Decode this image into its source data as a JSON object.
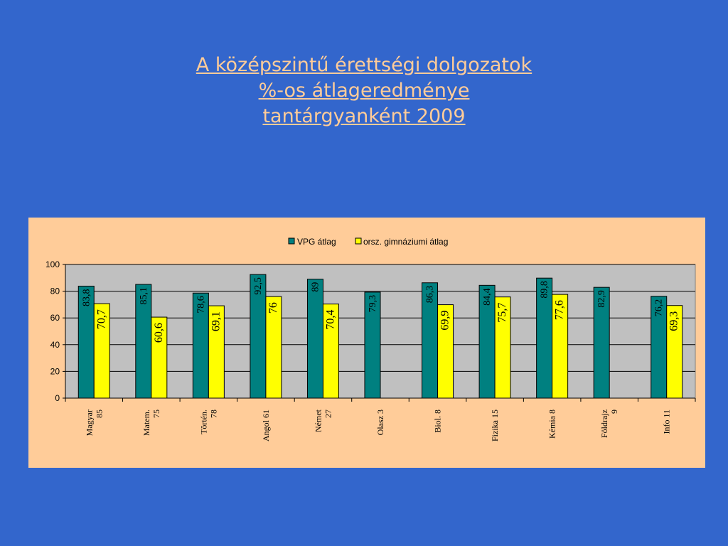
{
  "title": {
    "line1": "A középszintű érettségi dolgozatok",
    "line2": "%-os átlageredménye",
    "line3": "tantárgyanként  2009"
  },
  "colors": {
    "background": "#3366cc",
    "panel": "#ffcc99",
    "plot_area": "#c0c0c0",
    "series1": "#008080",
    "series2": "#ffff00",
    "title": "#ffcc99"
  },
  "chart_data": {
    "type": "bar",
    "categories": [
      [
        "Magyar",
        "85"
      ],
      [
        "Matem.",
        "75"
      ],
      [
        "Történ.",
        "78"
      ],
      [
        "Angol 61"
      ],
      [
        "Német",
        "27"
      ],
      [
        "Olasz 3"
      ],
      [
        "Biol. 8"
      ],
      [
        "Fizika 15"
      ],
      [
        "Kémia 8"
      ],
      [
        "Földrajz",
        "9"
      ],
      [
        "Info  11"
      ]
    ],
    "series": [
      {
        "name": "VPG átlag",
        "values": [
          83.8,
          85.1,
          78.6,
          92.5,
          89,
          79.3,
          86.3,
          84.4,
          89.8,
          82.9,
          76.2
        ],
        "labels": [
          "83,8",
          "85,1",
          "78,6",
          "92,5",
          "89",
          "79,3",
          "86,3",
          "84,4",
          "89,8",
          "82,9",
          "76,2"
        ]
      },
      {
        "name": "orsz. gimnáziumi átlag",
        "values": [
          70.7,
          60.6,
          69.1,
          76,
          70.4,
          null,
          69.9,
          75.7,
          77.6,
          null,
          69.3
        ],
        "labels": [
          "70,7",
          "60,6",
          "69,1",
          "76",
          "70,4",
          null,
          "69,9",
          "75,7",
          "77,6",
          null,
          "69,3"
        ]
      }
    ],
    "yticks": [
      "0",
      "20",
      "40",
      "60",
      "80",
      "100"
    ],
    "ylim": [
      0,
      100
    ],
    "grid": true,
    "legend": "top"
  }
}
